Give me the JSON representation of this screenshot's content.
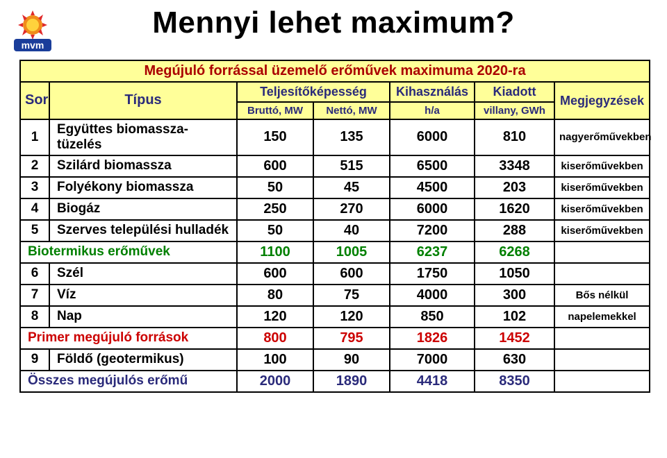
{
  "title": "Mennyi lehet maximum?",
  "subtitle": "Megújuló forrással üzemelő erőművek maximuma 2020-ra",
  "logo": {
    "text": "mvm",
    "blue": "#1a3d9a",
    "orange": "#f08c1a",
    "yellow": "#ffd23c",
    "red": "#e02a2a"
  },
  "colors": {
    "header_bg": "#ffff99",
    "header_text": "#2a2a7a",
    "subtitle_text": "#aa0000",
    "bio_text": "#008000",
    "primer_text": "#cc0000",
    "osszes_text": "#2a2a7a",
    "border": "#000000",
    "bg": "#ffffff"
  },
  "columns": {
    "sor": "Sor",
    "tipus": "Típus",
    "telj": "Teljesítőképesség",
    "brutto": "Bruttó, MW",
    "netto": "Nettó, MW",
    "kihasz": "Kihasználás",
    "ha": "h/a",
    "kiadott": "Kiadott",
    "villany": "villany, GWh",
    "megj": "Megjegyzések"
  },
  "widths": {
    "sor": 42,
    "tipus": 270,
    "brutto": 110,
    "netto": 110,
    "ha": 122,
    "villany": 115,
    "megj": 137
  },
  "rows": [
    {
      "idx": "1",
      "label": "Együttes biomassza-tüzelés",
      "v": [
        "150",
        "135",
        "6000",
        "810"
      ],
      "note": "nagyerőművekben"
    },
    {
      "idx": "2",
      "label": "Szilárd biomassza",
      "v": [
        "600",
        "515",
        "6500",
        "3348"
      ],
      "note": "kiserőművekben"
    },
    {
      "idx": "3",
      "label": "Folyékony biomassza",
      "v": [
        "50",
        "45",
        "4500",
        "203"
      ],
      "note": "kiserőművekben"
    },
    {
      "idx": "4",
      "label": "Biogáz",
      "v": [
        "250",
        "270",
        "6000",
        "1620"
      ],
      "note": "kiserőművekben"
    },
    {
      "idx": "5",
      "label": "Szerves települési hulladék",
      "v": [
        "50",
        "40",
        "7200",
        "288"
      ],
      "note": "kiserőművekben"
    },
    {
      "idx": "",
      "label": "Biotermikus erőművek",
      "v": [
        "1100",
        "1005",
        "6237",
        "6268"
      ],
      "note": "",
      "cls": "row-bio",
      "merge": true
    },
    {
      "idx": "6",
      "label": "Szél",
      "v": [
        "600",
        "600",
        "1750",
        "1050"
      ],
      "note": ""
    },
    {
      "idx": "7",
      "label": "Víz",
      "v": [
        "80",
        "75",
        "4000",
        "300"
      ],
      "note": "Bős nélkül"
    },
    {
      "idx": "8",
      "label": "Nap",
      "v": [
        "120",
        "120",
        "850",
        "102"
      ],
      "note": "napelemekkel"
    },
    {
      "idx": "",
      "label": "Primer megújuló források",
      "v": [
        "800",
        "795",
        "1826",
        "1452"
      ],
      "note": "",
      "cls": "row-primer",
      "merge": true
    },
    {
      "idx": "9",
      "label": "Földő (geotermikus)",
      "v": [
        "100",
        "90",
        "7000",
        "630"
      ],
      "note": ""
    },
    {
      "idx": "",
      "label": "Összes megújulós erőmű",
      "v": [
        "2000",
        "1890",
        "4418",
        "8350"
      ],
      "note": "",
      "cls": "row-osszes",
      "merge": true
    }
  ]
}
